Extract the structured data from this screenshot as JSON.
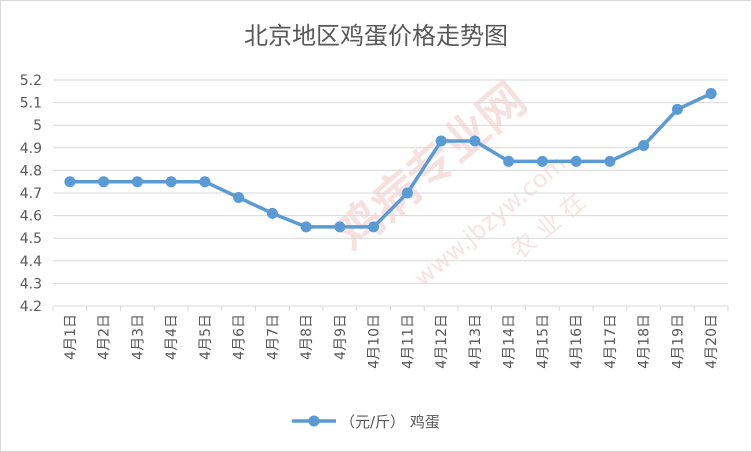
{
  "chart_data": {
    "type": "line",
    "title": "北京地区鸡蛋价格走势图",
    "categories": [
      "4月1日",
      "4月2日",
      "4月3日",
      "4月4日",
      "4月5日",
      "4月6日",
      "4月7日",
      "4月8日",
      "4月9日",
      "4月10日",
      "4月11日",
      "4月12日",
      "4月13日",
      "4月14日",
      "4月15日",
      "4月16日",
      "4月17日",
      "4月18日",
      "4月19日",
      "4月20日"
    ],
    "series": [
      {
        "name": "（元/斤） 鸡蛋",
        "values": [
          4.75,
          4.75,
          4.75,
          4.75,
          4.75,
          4.68,
          4.61,
          4.55,
          4.55,
          4.55,
          4.7,
          4.93,
          4.93,
          4.84,
          4.84,
          4.84,
          4.84,
          4.91,
          5.07,
          5.14
        ]
      }
    ],
    "yticks": [
      "4.2",
      "4.3",
      "4.4",
      "4.5",
      "4.6",
      "4.7",
      "4.8",
      "4.9",
      "5",
      "5.1",
      "5.2"
    ],
    "ylim": [
      4.2,
      5.2
    ],
    "grid": true,
    "legend": "bottom",
    "line_color": "#5b9bd5",
    "watermark": [
      "鸡病专业网",
      "www.jbzyw.com",
      "农 业 在"
    ]
  }
}
